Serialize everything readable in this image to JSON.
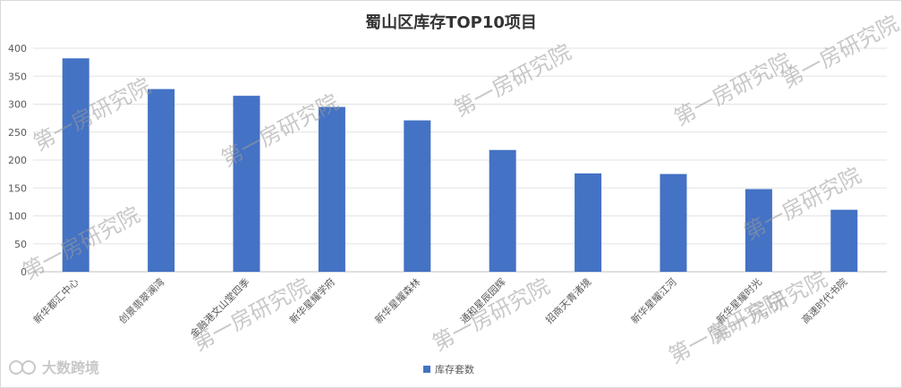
{
  "chart_data": {
    "type": "bar",
    "title": "蜀山区库存TOP10项目",
    "categories": [
      "新华都汇中心",
      "创景翡翠澜湾",
      "金融港文山堂四季",
      "新华星耀学府",
      "新华星耀森林",
      "通和星辰园辉",
      "招商天青渚境",
      "新华星耀江河",
      "新华星耀时光",
      "高速时代书院"
    ],
    "series": [
      {
        "name": "库存套数",
        "values": [
          382,
          327,
          315,
          295,
          271,
          218,
          176,
          175,
          148,
          111
        ],
        "color": "#4472C4"
      }
    ],
    "ylim": [
      0,
      400
    ],
    "yticks": [
      0,
      50,
      100,
      150,
      200,
      250,
      300,
      350,
      400
    ],
    "xlabel": "",
    "ylabel": "",
    "grid": true,
    "legend": "bottom"
  },
  "watermark": {
    "text": "第一房研究院",
    "brand": "大数跨境"
  }
}
